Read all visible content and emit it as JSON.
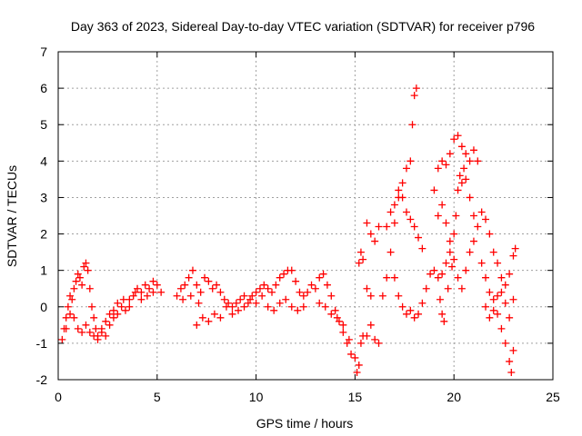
{
  "chart_data": {
    "type": "scatter",
    "title": "Day 363 of 2023, Sidereal Day-to-day VTEC variation (SDTVAR) for receiver p796",
    "xlabel": "GPS time / hours",
    "ylabel": "SDTVAR / TECUs",
    "xlim": [
      0,
      25
    ],
    "ylim": [
      -2,
      7
    ],
    "xticks": [
      "0",
      "5",
      "10",
      "15",
      "20",
      "25"
    ],
    "yticks": [
      "-2",
      "-1",
      "0",
      "1",
      "2",
      "3",
      "4",
      "5",
      "6",
      "7"
    ],
    "grid": true,
    "marker": "+",
    "series": [
      {
        "name": "SDTVAR",
        "color": "#ff0000",
        "points": [
          [
            0.2,
            -0.9
          ],
          [
            0.3,
            -0.6
          ],
          [
            0.4,
            -0.3
          ],
          [
            0.5,
            0.0
          ],
          [
            0.6,
            0.3
          ],
          [
            0.7,
            0.2
          ],
          [
            0.8,
            0.5
          ],
          [
            0.9,
            0.7
          ],
          [
            1.0,
            0.9
          ],
          [
            1.1,
            0.8
          ],
          [
            1.2,
            0.6
          ],
          [
            1.3,
            1.1
          ],
          [
            1.4,
            1.2
          ],
          [
            1.5,
            1.0
          ],
          [
            1.6,
            0.5
          ],
          [
            1.7,
            0.0
          ],
          [
            1.8,
            -0.3
          ],
          [
            1.9,
            -0.6
          ],
          [
            2.0,
            -0.8
          ],
          [
            2.2,
            -0.7
          ],
          [
            2.4,
            -0.4
          ],
          [
            2.6,
            -0.2
          ],
          [
            2.8,
            -0.1
          ],
          [
            3.0,
            0.1
          ],
          [
            3.2,
            0.0
          ],
          [
            3.4,
            -0.1
          ],
          [
            3.6,
            0.2
          ],
          [
            3.8,
            0.3
          ],
          [
            4.0,
            0.5
          ],
          [
            4.2,
            0.4
          ],
          [
            4.4,
            0.6
          ],
          [
            4.6,
            0.5
          ],
          [
            4.8,
            0.7
          ],
          [
            5.0,
            0.6
          ],
          [
            5.2,
            0.4
          ],
          [
            0.4,
            -0.6
          ],
          [
            0.6,
            -0.2
          ],
          [
            0.8,
            -0.3
          ],
          [
            1.0,
            -0.6
          ],
          [
            1.2,
            -0.7
          ],
          [
            1.4,
            -0.5
          ],
          [
            1.6,
            -0.7
          ],
          [
            1.8,
            -0.8
          ],
          [
            2.0,
            -0.9
          ],
          [
            2.2,
            -0.6
          ],
          [
            2.4,
            -0.8
          ],
          [
            2.6,
            -0.5
          ],
          [
            2.8,
            -0.3
          ],
          [
            3.0,
            -0.2
          ],
          [
            3.3,
            0.2
          ],
          [
            3.6,
            0.0
          ],
          [
            3.9,
            0.4
          ],
          [
            4.2,
            0.2
          ],
          [
            4.5,
            0.3
          ],
          [
            4.8,
            0.4
          ],
          [
            6.0,
            0.3
          ],
          [
            6.2,
            0.5
          ],
          [
            6.4,
            0.6
          ],
          [
            6.6,
            0.8
          ],
          [
            6.8,
            1.0
          ],
          [
            7.0,
            0.6
          ],
          [
            7.2,
            0.4
          ],
          [
            6.3,
            0.2
          ],
          [
            6.7,
            0.3
          ],
          [
            7.1,
            0.1
          ],
          [
            7.4,
            0.8
          ],
          [
            7.6,
            0.7
          ],
          [
            7.8,
            0.5
          ],
          [
            8.0,
            0.6
          ],
          [
            8.2,
            0.4
          ],
          [
            8.4,
            0.2
          ],
          [
            8.6,
            0.1
          ],
          [
            8.8,
            0.0
          ],
          [
            9.0,
            0.1
          ],
          [
            9.2,
            0.2
          ],
          [
            9.4,
            0.3
          ],
          [
            9.6,
            0.1
          ],
          [
            9.8,
            0.3
          ],
          [
            10.0,
            0.4
          ],
          [
            10.2,
            0.5
          ],
          [
            10.4,
            0.6
          ],
          [
            10.6,
            0.5
          ],
          [
            10.8,
            0.4
          ],
          [
            11.0,
            0.6
          ],
          [
            11.2,
            0.8
          ],
          [
            11.4,
            0.9
          ],
          [
            11.6,
            1.0
          ],
          [
            11.8,
            1.0
          ],
          [
            12.0,
            0.7
          ],
          [
            12.2,
            0.4
          ],
          [
            12.4,
            0.3
          ],
          [
            7.0,
            -0.5
          ],
          [
            7.3,
            -0.3
          ],
          [
            7.6,
            -0.4
          ],
          [
            7.9,
            -0.2
          ],
          [
            8.2,
            -0.3
          ],
          [
            8.5,
            0.0
          ],
          [
            8.8,
            -0.2
          ],
          [
            9.1,
            -0.1
          ],
          [
            9.4,
            0.0
          ],
          [
            9.7,
            0.2
          ],
          [
            10.0,
            0.1
          ],
          [
            10.3,
            0.3
          ],
          [
            10.6,
            0.0
          ],
          [
            10.9,
            -0.1
          ],
          [
            11.2,
            0.1
          ],
          [
            11.5,
            0.2
          ],
          [
            11.8,
            0.0
          ],
          [
            12.1,
            -0.1
          ],
          [
            12.4,
            0.0
          ],
          [
            12.6,
            0.4
          ],
          [
            12.8,
            0.6
          ],
          [
            13.0,
            0.5
          ],
          [
            13.2,
            0.8
          ],
          [
            13.4,
            0.9
          ],
          [
            13.6,
            0.6
          ],
          [
            13.8,
            0.3
          ],
          [
            14.0,
            -0.1
          ],
          [
            14.2,
            -0.4
          ],
          [
            14.4,
            -0.7
          ],
          [
            14.6,
            -1.0
          ],
          [
            14.8,
            -1.3
          ],
          [
            15.0,
            -1.4
          ],
          [
            15.1,
            -1.8
          ],
          [
            15.2,
            -1.6
          ],
          [
            13.2,
            0.1
          ],
          [
            13.5,
            0.0
          ],
          [
            13.8,
            -0.2
          ],
          [
            14.1,
            -0.3
          ],
          [
            14.4,
            -0.5
          ],
          [
            14.7,
            -0.9
          ],
          [
            15.3,
            -1.0
          ],
          [
            15.4,
            -0.8
          ],
          [
            15.2,
            1.2
          ],
          [
            15.3,
            1.5
          ],
          [
            15.4,
            1.3
          ],
          [
            15.6,
            0.5
          ],
          [
            15.8,
            0.3
          ],
          [
            15.6,
            -0.8
          ],
          [
            15.8,
            -0.5
          ],
          [
            16.0,
            -0.9
          ],
          [
            16.2,
            -1.0
          ],
          [
            15.6,
            2.3
          ],
          [
            15.8,
            2.0
          ],
          [
            16.0,
            1.8
          ],
          [
            16.2,
            2.2
          ],
          [
            16.4,
            0.3
          ],
          [
            16.6,
            0.8
          ],
          [
            16.8,
            1.5
          ],
          [
            17.0,
            2.3
          ],
          [
            17.2,
            3.0
          ],
          [
            17.4,
            3.4
          ],
          [
            17.6,
            3.8
          ],
          [
            17.8,
            4.0
          ],
          [
            17.9,
            5.0
          ],
          [
            18.0,
            5.8
          ],
          [
            18.1,
            6.0
          ],
          [
            16.6,
            2.2
          ],
          [
            16.8,
            2.6
          ],
          [
            17.0,
            2.8
          ],
          [
            17.2,
            3.2
          ],
          [
            17.4,
            3.0
          ],
          [
            17.6,
            2.6
          ],
          [
            17.8,
            2.4
          ],
          [
            18.0,
            2.2
          ],
          [
            18.2,
            1.9
          ],
          [
            18.4,
            1.6
          ],
          [
            17.0,
            0.8
          ],
          [
            17.2,
            0.3
          ],
          [
            17.4,
            0.0
          ],
          [
            17.6,
            -0.2
          ],
          [
            17.8,
            -0.1
          ],
          [
            18.0,
            -0.3
          ],
          [
            18.2,
            -0.2
          ],
          [
            18.4,
            0.1
          ],
          [
            18.6,
            0.5
          ],
          [
            18.8,
            0.9
          ],
          [
            19.0,
            1.0
          ],
          [
            19.2,
            0.8
          ],
          [
            19.4,
            0.9
          ],
          [
            19.6,
            1.2
          ],
          [
            19.8,
            1.5
          ],
          [
            20.0,
            2.0
          ],
          [
            20.1,
            2.5
          ],
          [
            20.2,
            3.2
          ],
          [
            20.3,
            3.6
          ],
          [
            20.4,
            3.4
          ],
          [
            20.5,
            3.8
          ],
          [
            20.6,
            3.5
          ],
          [
            20.8,
            3.0
          ],
          [
            21.0,
            2.5
          ],
          [
            21.2,
            2.2
          ],
          [
            19.0,
            3.2
          ],
          [
            19.2,
            3.8
          ],
          [
            19.4,
            4.0
          ],
          [
            19.6,
            3.9
          ],
          [
            19.8,
            4.2
          ],
          [
            20.0,
            4.6
          ],
          [
            20.2,
            4.7
          ],
          [
            20.4,
            4.4
          ],
          [
            20.6,
            4.2
          ],
          [
            20.8,
            4.0
          ],
          [
            21.0,
            4.3
          ],
          [
            21.2,
            4.0
          ],
          [
            19.2,
            2.5
          ],
          [
            19.4,
            2.8
          ],
          [
            19.6,
            2.3
          ],
          [
            19.8,
            1.8
          ],
          [
            20.0,
            1.3
          ],
          [
            20.2,
            0.8
          ],
          [
            20.4,
            0.5
          ],
          [
            20.6,
            1.0
          ],
          [
            20.8,
            1.5
          ],
          [
            21.0,
            1.8
          ],
          [
            19.3,
            0.2
          ],
          [
            19.4,
            -0.2
          ],
          [
            19.5,
            -0.4
          ],
          [
            19.7,
            0.5
          ],
          [
            19.9,
            1.1
          ],
          [
            21.4,
            2.6
          ],
          [
            21.6,
            2.4
          ],
          [
            21.8,
            2.0
          ],
          [
            22.0,
            1.5
          ],
          [
            22.2,
            1.2
          ],
          [
            22.4,
            0.8
          ],
          [
            22.6,
            0.6
          ],
          [
            22.8,
            0.9
          ],
          [
            23.0,
            1.4
          ],
          [
            23.1,
            1.6
          ],
          [
            21.4,
            1.2
          ],
          [
            21.6,
            0.8
          ],
          [
            21.8,
            0.4
          ],
          [
            22.0,
            0.2
          ],
          [
            22.2,
            -0.2
          ],
          [
            22.4,
            -0.6
          ],
          [
            22.6,
            -1.0
          ],
          [
            22.8,
            -1.5
          ],
          [
            22.9,
            -1.8
          ],
          [
            23.0,
            -1.2
          ],
          [
            21.6,
            0.0
          ],
          [
            21.8,
            -0.3
          ],
          [
            22.0,
            -0.1
          ],
          [
            22.2,
            0.3
          ],
          [
            22.4,
            0.4
          ],
          [
            22.6,
            0.1
          ],
          [
            22.8,
            -0.3
          ],
          [
            23.0,
            0.2
          ]
        ]
      }
    ]
  }
}
